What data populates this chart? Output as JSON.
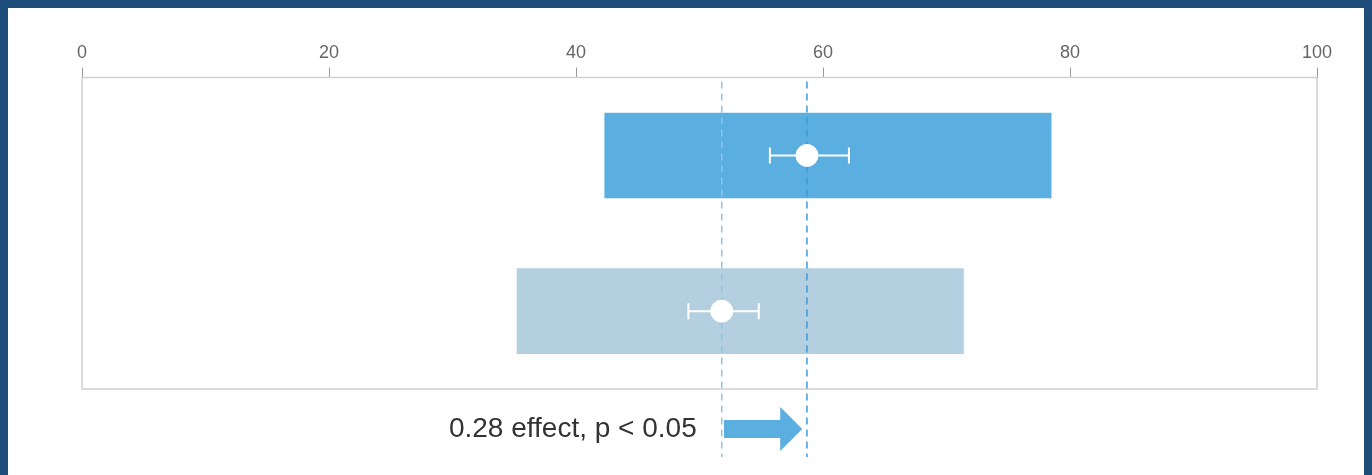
{
  "chart_data": {
    "type": "bar",
    "orientation": "horizontal",
    "categories": [
      null,
      null
    ],
    "series": [
      {
        "colors": [
          "#5aafe0",
          "#b4cfdf"
        ],
        "base": [
          42.3,
          35.2
        ],
        "values": [
          36.2,
          36.2
        ]
      },
      {
        "type": "scatter",
        "color": "#ffffff",
        "marker": "circle",
        "values": [
          58.7,
          51.8
        ],
        "errors": [
          [
            55.7,
            62.1
          ],
          [
            49.1,
            54.8
          ]
        ]
      }
    ],
    "xlim": [
      0,
      100
    ],
    "xticks": [
      0,
      20,
      40,
      60,
      80,
      100
    ],
    "tick_labels": "x",
    "grid": false,
    "legend": false,
    "ref_lines": [
      {
        "axis": "x",
        "value": 51.8,
        "color": "#8fc5e8",
        "line_style": "dashed"
      },
      {
        "axis": "x",
        "value": 58.7,
        "color": "#3b9bdb",
        "line_style": "dashed"
      }
    ],
    "annotations": [
      "0.28 effect, p < 0.05"
    ]
  }
}
